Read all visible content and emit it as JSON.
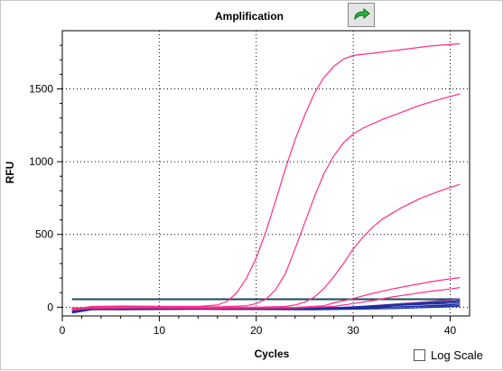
{
  "header": {
    "title": "Amplification",
    "export_icon": "green-curved-arrow-icon"
  },
  "log_scale": {
    "label": "Log Scale",
    "checked": false
  },
  "chart_data": {
    "type": "line",
    "title": "Amplification",
    "xlabel": "Cycles",
    "ylabel": "RFU",
    "xlim": [
      0,
      42
    ],
    "ylim": [
      -60,
      1900
    ],
    "x_ticks": [
      0,
      10,
      20,
      30,
      40
    ],
    "y_ticks": [
      0,
      500,
      1000,
      1500
    ],
    "grid": true,
    "legend": "none",
    "threshold": 55,
    "colors": {
      "amplified": "#ff2d8a",
      "baseline": "#1c2ea0",
      "threshold": "#1a4a5e"
    },
    "series": [
      {
        "color": "#ff2d8a",
        "points": [
          [
            1,
            -15
          ],
          [
            3,
            5
          ],
          [
            6,
            8
          ],
          [
            10,
            6
          ],
          [
            14,
            5
          ],
          [
            16,
            15
          ],
          [
            17,
            40
          ],
          [
            18,
            100
          ],
          [
            19,
            200
          ],
          [
            20,
            340
          ],
          [
            21,
            520
          ],
          [
            22,
            730
          ],
          [
            23,
            950
          ],
          [
            24,
            1150
          ],
          [
            25,
            1320
          ],
          [
            26,
            1470
          ],
          [
            27,
            1580
          ],
          [
            28,
            1655
          ],
          [
            29,
            1705
          ],
          [
            30,
            1730
          ],
          [
            32,
            1745
          ],
          [
            35,
            1770
          ],
          [
            38,
            1795
          ],
          [
            41,
            1810
          ]
        ]
      },
      {
        "color": "#ff2d8a",
        "points": [
          [
            1,
            -10
          ],
          [
            4,
            2
          ],
          [
            8,
            4
          ],
          [
            12,
            3
          ],
          [
            16,
            2
          ],
          [
            19,
            10
          ],
          [
            20,
            25
          ],
          [
            21,
            55
          ],
          [
            22,
            120
          ],
          [
            23,
            230
          ],
          [
            24,
            400
          ],
          [
            25,
            580
          ],
          [
            26,
            760
          ],
          [
            27,
            920
          ],
          [
            28,
            1040
          ],
          [
            29,
            1130
          ],
          [
            30,
            1190
          ],
          [
            31,
            1230
          ],
          [
            33,
            1290
          ],
          [
            35,
            1340
          ],
          [
            37,
            1390
          ],
          [
            39,
            1430
          ],
          [
            41,
            1465
          ]
        ]
      },
      {
        "color": "#ff2d8a",
        "points": [
          [
            1,
            -20
          ],
          [
            4,
            0
          ],
          [
            8,
            2
          ],
          [
            14,
            0
          ],
          [
            20,
            0
          ],
          [
            23,
            5
          ],
          [
            24,
            15
          ],
          [
            25,
            35
          ],
          [
            26,
            70
          ],
          [
            27,
            130
          ],
          [
            28,
            210
          ],
          [
            29,
            300
          ],
          [
            30,
            400
          ],
          [
            31,
            480
          ],
          [
            32,
            550
          ],
          [
            33,
            605
          ],
          [
            34,
            645
          ],
          [
            35,
            685
          ],
          [
            37,
            750
          ],
          [
            39,
            800
          ],
          [
            41,
            845
          ]
        ]
      },
      {
        "color": "#ff2d8a",
        "points": [
          [
            1,
            -5
          ],
          [
            6,
            0
          ],
          [
            12,
            -2
          ],
          [
            18,
            -5
          ],
          [
            24,
            -2
          ],
          [
            27,
            10
          ],
          [
            28,
            30
          ],
          [
            30,
            60
          ],
          [
            32,
            95
          ],
          [
            34,
            125
          ],
          [
            36,
            150
          ],
          [
            38,
            175
          ],
          [
            40,
            195
          ],
          [
            41,
            203
          ]
        ]
      },
      {
        "color": "#ff2d8a",
        "points": [
          [
            1,
            -10
          ],
          [
            8,
            -5
          ],
          [
            16,
            -8
          ],
          [
            24,
            -5
          ],
          [
            28,
            5
          ],
          [
            30,
            25
          ],
          [
            32,
            45
          ],
          [
            34,
            70
          ],
          [
            36,
            90
          ],
          [
            38,
            110
          ],
          [
            40,
            125
          ],
          [
            41,
            135
          ]
        ]
      },
      {
        "color": "#a0409a",
        "points": [
          [
            1,
            -5
          ],
          [
            10,
            -5
          ],
          [
            20,
            -8
          ],
          [
            26,
            -5
          ],
          [
            30,
            0
          ],
          [
            33,
            15
          ],
          [
            36,
            30
          ],
          [
            39,
            45
          ],
          [
            41,
            55
          ]
        ]
      },
      {
        "color": "#1c2ea0",
        "points": [
          [
            1,
            -30
          ],
          [
            3,
            -10
          ],
          [
            10,
            -8
          ],
          [
            20,
            -10
          ],
          [
            28,
            -10
          ],
          [
            32,
            5
          ],
          [
            36,
            20
          ],
          [
            41,
            40
          ]
        ]
      },
      {
        "color": "#1c2ea0",
        "points": [
          [
            1,
            -25
          ],
          [
            3,
            0
          ],
          [
            10,
            0
          ],
          [
            20,
            -5
          ],
          [
            28,
            -5
          ],
          [
            32,
            10
          ],
          [
            36,
            25
          ],
          [
            41,
            45
          ]
        ]
      },
      {
        "color": "#1c2ea0",
        "points": [
          [
            1,
            -20
          ],
          [
            3,
            -5
          ],
          [
            12,
            -5
          ],
          [
            24,
            -10
          ],
          [
            30,
            -5
          ],
          [
            34,
            10
          ],
          [
            41,
            30
          ]
        ]
      },
      {
        "color": "#1c2ea0",
        "points": [
          [
            1,
            -35
          ],
          [
            3,
            -15
          ],
          [
            12,
            -12
          ],
          [
            24,
            -15
          ],
          [
            30,
            -10
          ],
          [
            36,
            5
          ],
          [
            41,
            20
          ]
        ]
      },
      {
        "color": "#1c2ea0",
        "points": [
          [
            1,
            -10
          ],
          [
            4,
            0
          ],
          [
            14,
            -3
          ],
          [
            26,
            -5
          ],
          [
            32,
            0
          ],
          [
            41,
            10
          ]
        ]
      },
      {
        "color": "#1c2ea0",
        "points": [
          [
            1,
            -40
          ],
          [
            3,
            -18
          ],
          [
            14,
            -15
          ],
          [
            26,
            -18
          ],
          [
            34,
            -10
          ],
          [
            41,
            5
          ]
        ]
      }
    ]
  }
}
